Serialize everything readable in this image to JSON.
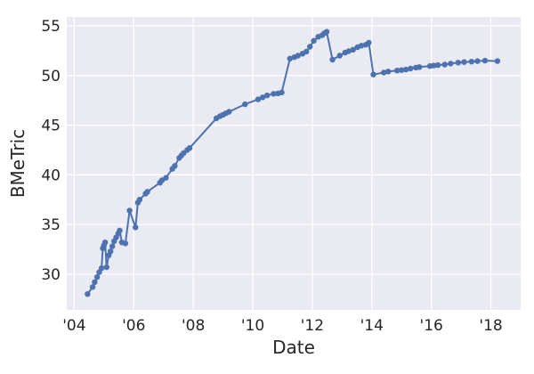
{
  "figure": {
    "background_color": "#ffffff",
    "axes_background_color": "#eaeaf2",
    "grid_color": "#ffffff",
    "line_color": "#4c72b0",
    "marker_color": "#4c72b0",
    "text_color": "#262626"
  },
  "chart_data": {
    "type": "line",
    "title": "",
    "xlabel": "Date",
    "ylabel": "BMeTric",
    "grid": true,
    "legend": false,
    "marker": "circle",
    "x_tick_values": [
      2004,
      2006,
      2008,
      2010,
      2012,
      2014,
      2016,
      2018
    ],
    "x_tick_labels": [
      "'04",
      "'06",
      "'08",
      "'10",
      "'12",
      "'14",
      "'16",
      "'18"
    ],
    "y_tick_values": [
      30,
      35,
      40,
      45,
      50,
      55
    ],
    "y_tick_labels": [
      "30",
      "35",
      "40",
      "45",
      "50",
      "55"
    ],
    "xlim": [
      2003.75,
      2019.0
    ],
    "ylim": [
      26.4,
      55.9
    ],
    "series": [
      {
        "name": "BMeTric",
        "x": [
          2004.45,
          2004.62,
          2004.69,
          2004.77,
          2004.84,
          2004.92,
          2004.96,
          2005.0,
          2005.04,
          2005.09,
          2005.16,
          2005.22,
          2005.28,
          2005.34,
          2005.41,
          2005.48,
          2005.53,
          2005.6,
          2005.72,
          2005.86,
          2006.06,
          2006.14,
          2006.2,
          2006.4,
          2006.46,
          2006.88,
          2006.95,
          2007.08,
          2007.3,
          2007.38,
          2007.53,
          2007.6,
          2007.68,
          2007.8,
          2007.88,
          2008.78,
          2008.9,
          2009.0,
          2009.1,
          2009.2,
          2009.74,
          2010.18,
          2010.33,
          2010.48,
          2010.7,
          2010.85,
          2010.97,
          2011.25,
          2011.4,
          2011.52,
          2011.67,
          2011.8,
          2011.92,
          2012.05,
          2012.2,
          2012.33,
          2012.4,
          2012.48,
          2012.68,
          2012.92,
          2013.1,
          2013.22,
          2013.37,
          2013.52,
          2013.65,
          2013.8,
          2013.9,
          2014.05,
          2014.4,
          2014.55,
          2014.85,
          2015.0,
          2015.15,
          2015.3,
          2015.48,
          2015.6,
          2015.95,
          2016.08,
          2016.22,
          2016.45,
          2016.65,
          2016.9,
          2017.1,
          2017.35,
          2017.55,
          2017.8,
          2018.22
        ],
        "y": [
          28.0,
          28.7,
          29.2,
          29.7,
          30.2,
          30.6,
          32.6,
          32.9,
          33.2,
          30.7,
          31.9,
          32.3,
          32.8,
          33.3,
          33.7,
          34.1,
          34.4,
          33.2,
          33.1,
          36.4,
          34.7,
          37.2,
          37.5,
          38.1,
          38.3,
          39.2,
          39.45,
          39.7,
          40.6,
          40.9,
          41.7,
          41.95,
          42.2,
          42.5,
          42.7,
          45.7,
          45.9,
          46.05,
          46.2,
          46.35,
          47.1,
          47.6,
          47.8,
          48.0,
          48.15,
          48.2,
          48.3,
          51.7,
          51.85,
          52.0,
          52.2,
          52.4,
          52.9,
          53.5,
          53.9,
          54.05,
          54.25,
          54.4,
          51.6,
          52.0,
          52.3,
          52.45,
          52.6,
          52.85,
          53.0,
          53.1,
          53.3,
          50.1,
          50.3,
          50.4,
          50.5,
          50.55,
          50.6,
          50.7,
          50.8,
          50.85,
          50.95,
          51.0,
          51.05,
          51.1,
          51.2,
          51.3,
          51.35,
          51.4,
          51.45,
          51.5,
          51.45
        ]
      }
    ]
  }
}
